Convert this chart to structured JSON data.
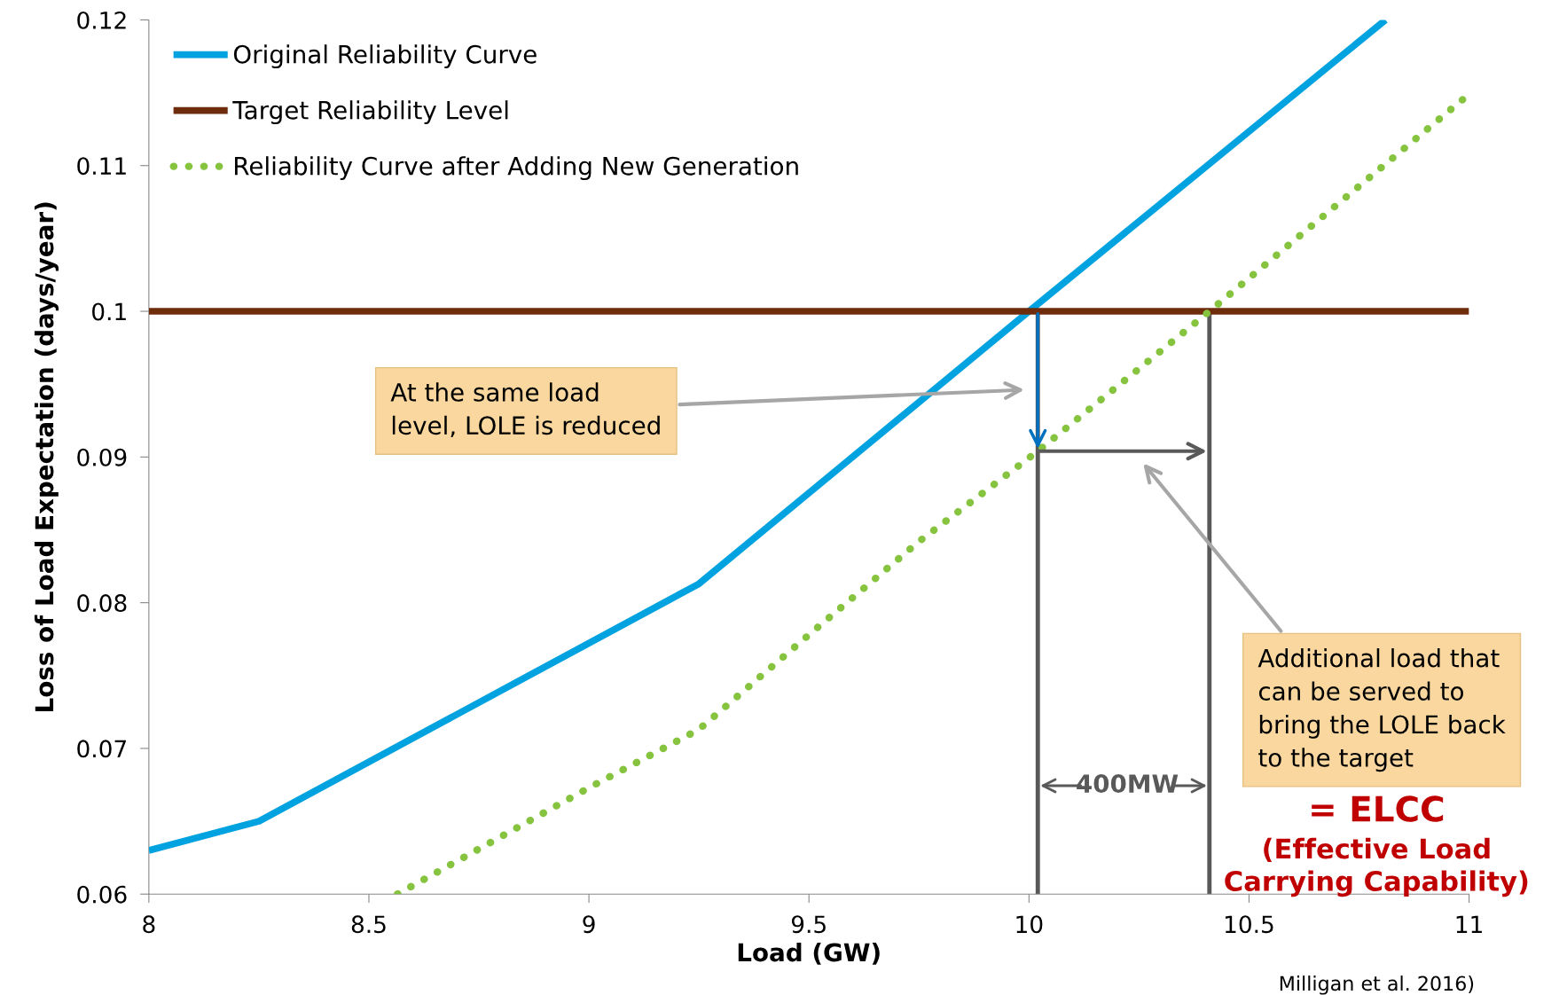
{
  "chart_data": {
    "type": "line",
    "xlabel": "Load (GW)",
    "ylabel": "Loss of Load Expectation (days/year)",
    "series": [
      {
        "name": "Original Reliability Curve",
        "color": "#00a2e0",
        "x": [
          8,
          8.25,
          9.25,
          10.0,
          10.81
        ],
        "values": [
          0.063,
          0.065,
          0.0813,
          0.1,
          0.12
        ]
      },
      {
        "name": "Target Reliability Level",
        "color": "#6e2c0c",
        "x": [
          8,
          11
        ],
        "values": [
          0.1,
          0.1
        ]
      },
      {
        "name": "Reliability Curve after Adding New Generation",
        "color": "#86c440",
        "line_style": "dotted",
        "x": [
          8.565,
          8.75,
          9.0,
          9.25,
          9.5,
          9.75,
          10.02,
          10.41,
          11
        ],
        "values": [
          0.06,
          0.0631,
          0.0673,
          0.0713,
          0.0778,
          0.0842,
          0.0904,
          0.1,
          0.1149
        ]
      }
    ],
    "ref_lines": [
      {
        "axis": "x",
        "value": 10.02,
        "color": "#595959"
      },
      {
        "axis": "x",
        "value": 10.41,
        "color": "#595959"
      }
    ],
    "annotations": [
      "At the same load\nlevel, LOLE is reduced",
      "Additional load that\ncan be served to\nbring the LOLE back\nto the target",
      "400MW",
      "= ELCC",
      "(Effective Load\nCarrying Capability)",
      "Milligan et al. 2016)"
    ],
    "xlim": [
      8,
      11
    ],
    "xticks": [
      8,
      8.5,
      9,
      9.5,
      10,
      10.5,
      11
    ],
    "ylim": [
      0.06,
      0.12
    ],
    "yticks": [
      0.06,
      0.07,
      0.08,
      0.09,
      0.1,
      0.11,
      0.12
    ],
    "grid": false,
    "legend": "top left",
    "marker": "none"
  }
}
